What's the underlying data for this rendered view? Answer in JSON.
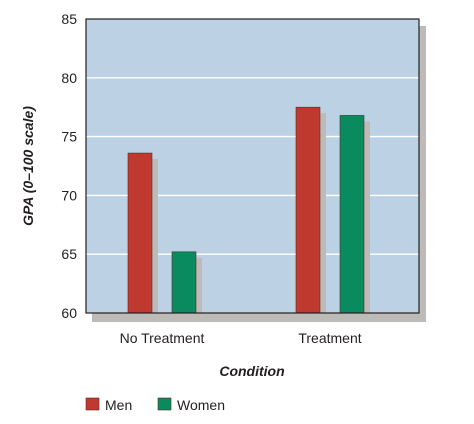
{
  "chart_data": {
    "type": "bar",
    "title": "",
    "categories": [
      "No Treatment",
      "Treatment"
    ],
    "series": [
      {
        "name": "Men",
        "values": [
          73.6,
          77.5
        ],
        "color": "#c0392f"
      },
      {
        "name": "Women",
        "values": [
          65.2,
          76.8
        ],
        "color": "#0a8a5f"
      }
    ],
    "xlabel": "Condition",
    "ylabel": "GPA (0–100 scale)",
    "ylim": [
      60,
      85
    ],
    "yticks": [
      "60",
      "65",
      "70",
      "75",
      "80",
      "85"
    ],
    "grid": true,
    "legend_position": "bottom-left"
  },
  "colors": {
    "plot_background": "#bcd2e4",
    "grid": "#ffffff",
    "shadow": "#bdbbb8",
    "axis": "#231f20"
  }
}
